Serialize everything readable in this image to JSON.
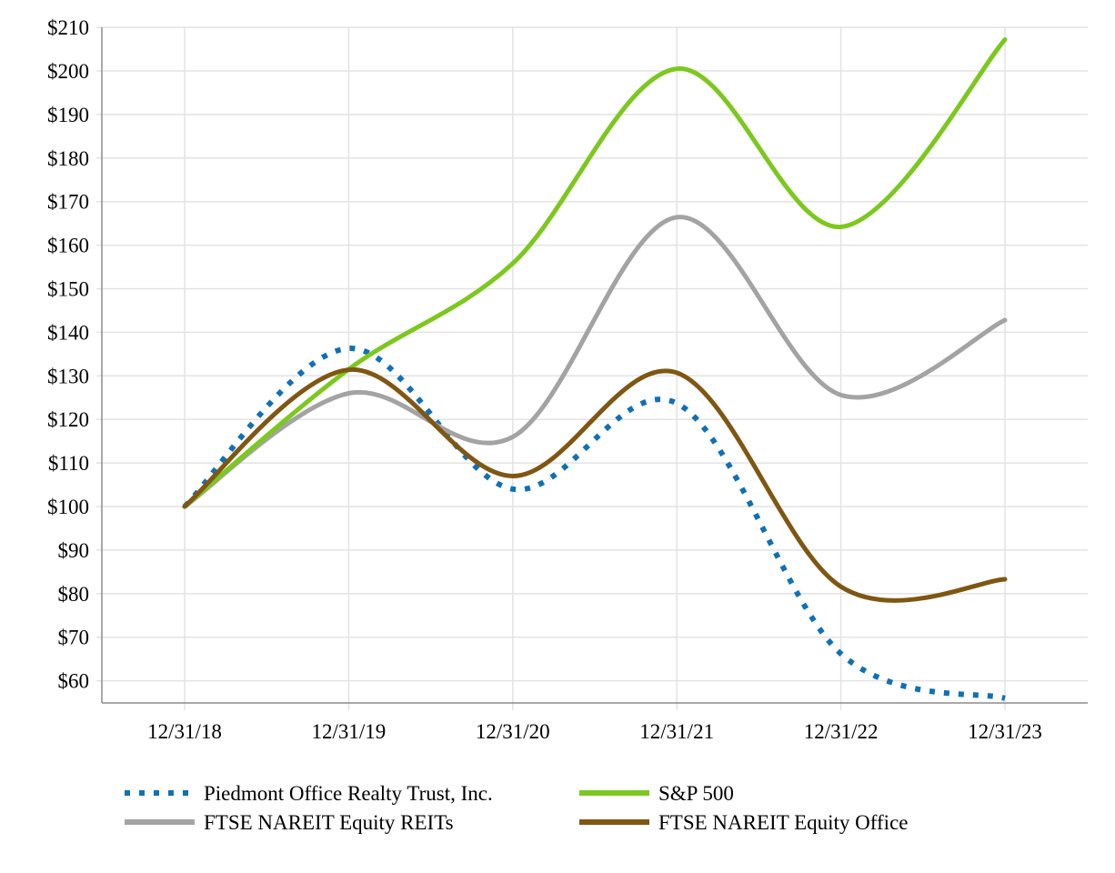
{
  "chart_data": {
    "type": "line",
    "x": [
      "12/31/18",
      "12/31/19",
      "12/31/20",
      "12/31/21",
      "12/31/22",
      "12/31/23"
    ],
    "ylim": [
      55,
      210
    ],
    "yticks": [
      60,
      70,
      80,
      90,
      100,
      110,
      120,
      130,
      140,
      150,
      160,
      170,
      180,
      190,
      200,
      210
    ],
    "ytick_labels": [
      "$60",
      "$70",
      "$80",
      "$90",
      "$100",
      "$110",
      "$120",
      "$130",
      "$140",
      "$150",
      "$160",
      "$170",
      "$180",
      "$190",
      "$200",
      "$210"
    ],
    "grid": true,
    "legend_position": "bottom",
    "series": [
      {
        "name": "Piedmont Office Realty Trust, Inc.",
        "values": [
          100,
          136.3,
          104,
          123.7,
          66.2,
          56
        ],
        "color": "#1170b5",
        "style": "dotted"
      },
      {
        "name": "S&P 500",
        "values": [
          100,
          131.5,
          155.8,
          200.5,
          164.2,
          207.2
        ],
        "color": "#7dc81e",
        "style": "solid"
      },
      {
        "name": "FTSE NAREIT Equity REITs",
        "values": [
          100,
          126,
          116,
          166.4,
          125.6,
          142.8
        ],
        "color": "#a3a3a3",
        "style": "solid"
      },
      {
        "name": "FTSE NAREIT Equity Office",
        "values": [
          100,
          131.4,
          107,
          130.7,
          81.6,
          83.3
        ],
        "color": "#7f5712",
        "style": "solid"
      }
    ]
  }
}
